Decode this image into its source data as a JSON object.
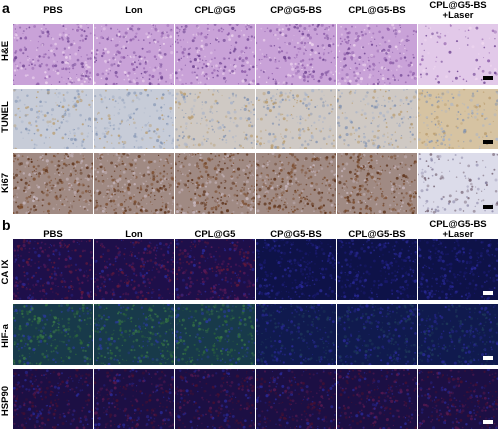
{
  "panel_a": {
    "letter": "a",
    "columns": [
      "PBS",
      "Lon",
      "CPL@G5",
      "CP@G5-BS",
      "CPL@G5-BS",
      "CPL@G5-BS",
      "+Laser"
    ],
    "rows": [
      "H&E",
      "TUNEL",
      "Ki67"
    ]
  },
  "panel_b": {
    "letter": "b",
    "columns": [
      "PBS",
      "Lon",
      "CPL@G5",
      "CP@G5-BS",
      "CPL@G5-BS",
      "CPL@G5-BS",
      "+Laser"
    ],
    "rows": [
      "CA IX",
      "HIF-a",
      "HSP90"
    ]
  },
  "colors": {
    "he": "#c9a2d8",
    "he_last": "#e2c9e9",
    "tunel": "#c7ccd8",
    "tunel_brown": "#d6c3a2",
    "ki67": "#a08a83",
    "ki67_last": "#dcdcea",
    "fluor_blue": "#0e1248",
    "fluor_red": "#3a1030",
    "fluor_green": "#1a4a2c",
    "scale_bar_dark": "#000000",
    "scale_bar_light": "#ffffff"
  }
}
